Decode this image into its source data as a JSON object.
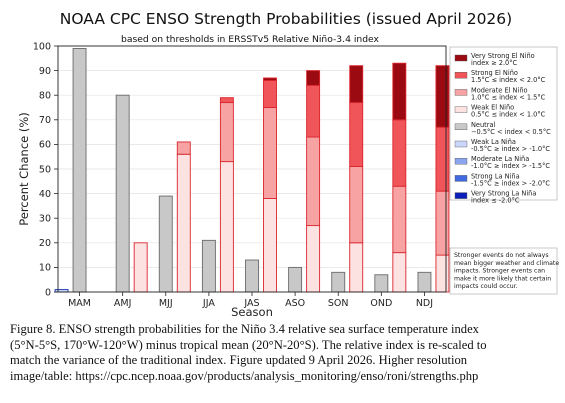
{
  "chart_data": {
    "type": "bar",
    "title": "NOAA CPC ENSO Strength Probabilities (issued April 2026)",
    "subtitle": "based on thresholds in ERSSTv5 Relative Niño-3.4 index",
    "xlabel": "Season",
    "ylabel": "Percent Chance (%)",
    "ylim": [
      0,
      100
    ],
    "yticks": [
      0,
      10,
      20,
      30,
      40,
      50,
      60,
      70,
      80,
      90,
      100
    ],
    "grid": true,
    "legend_position": "right",
    "categories": [
      "MAM",
      "AMJ",
      "MJJ",
      "JJA",
      "JAS",
      "ASO",
      "SON",
      "OND",
      "NDJ"
    ],
    "la_nina_bars": [
      {
        "name": "Very Strong La Niña",
        "label": "index ≤ -2.0°C",
        "color": "#0c1fb8",
        "values": [
          0,
          0,
          0,
          0,
          0,
          0,
          0,
          0,
          0
        ]
      },
      {
        "name": "Strong La Niña",
        "label": "-1.5°C ≥ index > -2.0°C",
        "color": "#4169e1",
        "values": [
          0,
          0,
          0,
          0,
          0,
          0,
          0,
          0,
          0
        ]
      },
      {
        "name": "Moderate La Niña",
        "label": "-1.0°C ≥ index > -1.5°C",
        "color": "#8aa4ee",
        "values": [
          0,
          0,
          0,
          0,
          0,
          0,
          0,
          0,
          0
        ]
      },
      {
        "name": "Weak La Niña",
        "label": "-0.5°C ≥ index > -1.0°C",
        "color": "#c9d6f7",
        "values": [
          1,
          0,
          0,
          0,
          0,
          0,
          0,
          0,
          0
        ]
      }
    ],
    "neutral": {
      "name": "Neutral",
      "label": "−0.5°C < index < 0.5°C",
      "color": "#c8c8c8",
      "values": [
        99,
        80,
        39,
        21,
        13,
        10,
        8,
        7,
        8
      ]
    },
    "el_nino_bars": [
      {
        "name": "Weak El Niño",
        "label": "0.5°C ≤ index < 1.0°C",
        "color": "#fde2e2",
        "values": [
          0,
          20,
          56,
          53,
          38,
          27,
          20,
          16,
          15
        ]
      },
      {
        "name": "Moderate El Niño",
        "label": "1.0°C ≤ index < 1.5°C",
        "color": "#f7a3a3",
        "values": [
          0,
          0,
          5,
          24,
          37,
          36,
          31,
          27,
          26
        ]
      },
      {
        "name": "Strong El Niño",
        "label": "1.5°C ≤ index < 2.0°C",
        "color": "#f0555a",
        "values": [
          0,
          0,
          0,
          2,
          11,
          21,
          26,
          27,
          26
        ]
      },
      {
        "name": "Very Strong El Niño",
        "label": "index ≥ 2.0°C",
        "color": "#9b0a10",
        "values": [
          0,
          0,
          0,
          0,
          1,
          6,
          15,
          23,
          25
        ]
      }
    ],
    "note": [
      "Stronger events do not always",
      "mean bigger weather and climate",
      "impacts. Stronger events can",
      "make it more likely that certain",
      "impacts could occur."
    ]
  },
  "caption": [
    "Figure 8. ENSO strength probabilities for the Niño 3.4 relative sea surface temperature index",
    "(5°N-5°S, 170°W-120°W) minus tropical mean (20°N-20°S). The relative index is re-scaled to",
    "match the variance of the traditional index. Figure updated 9 April 2026. Higher resolution",
    "image/table: https://cpc.ncep.noaa.gov/products/analysis_monitoring/enso/roni/strengths.php"
  ]
}
